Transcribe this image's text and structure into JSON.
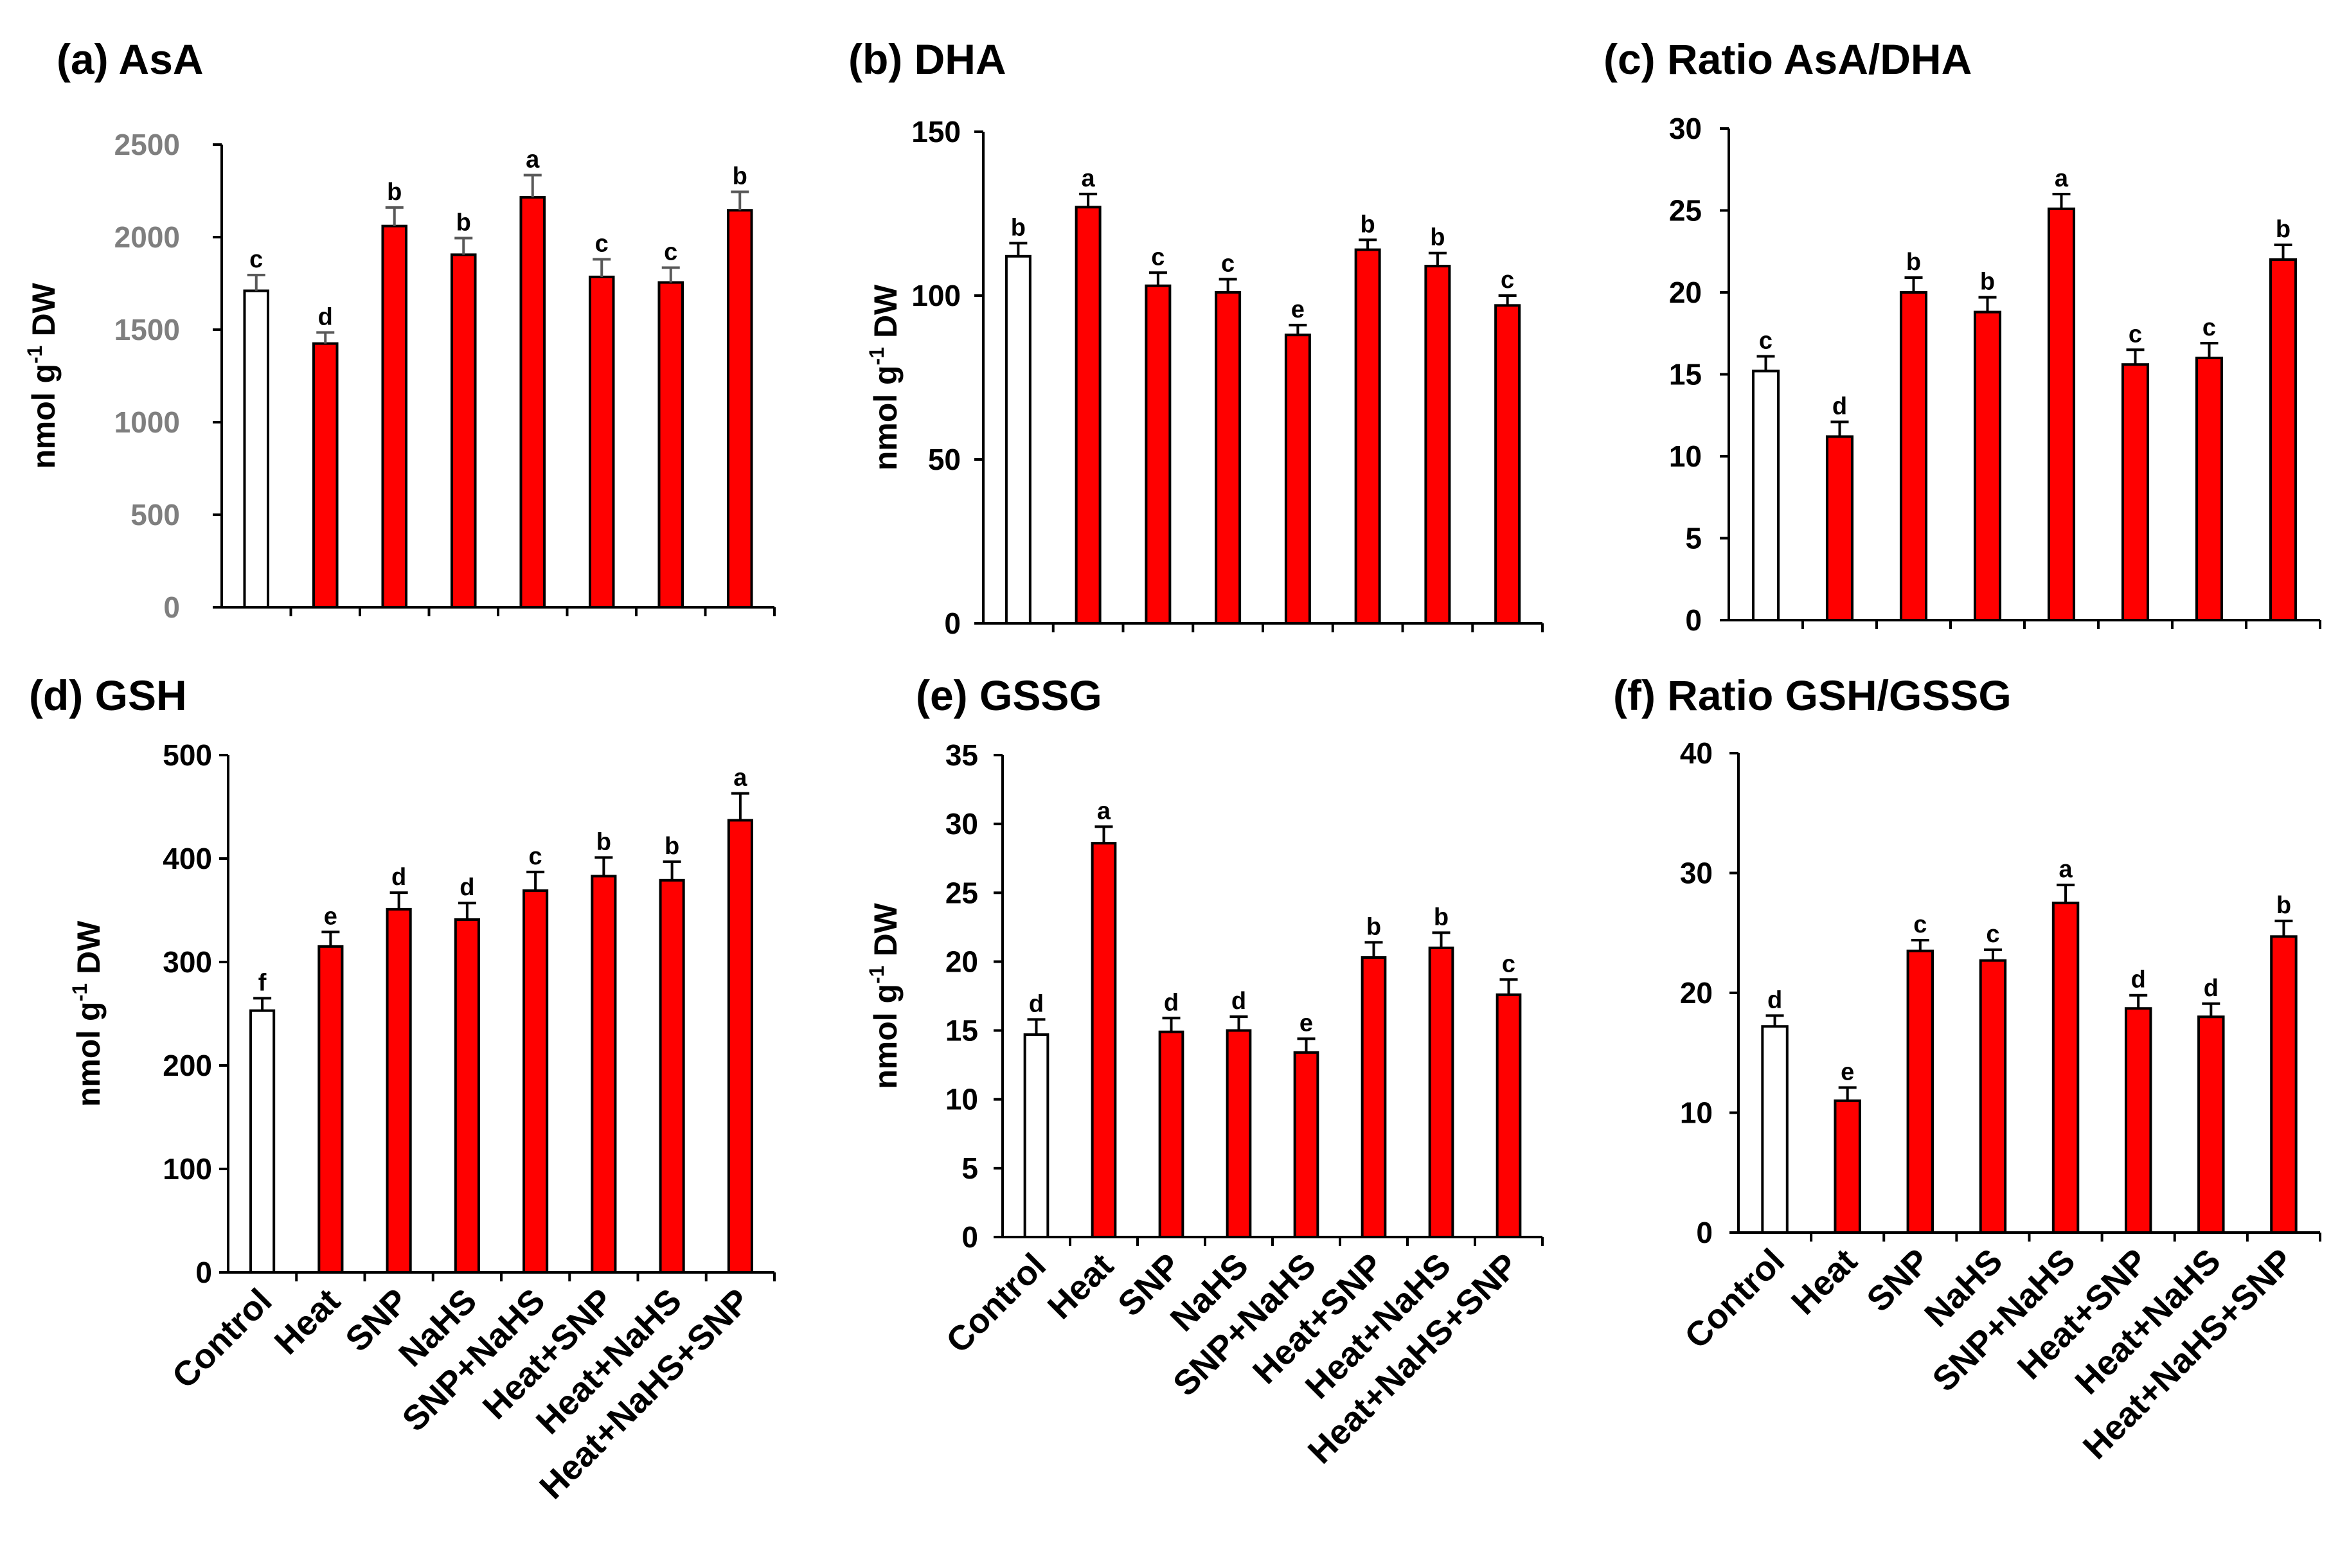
{
  "colors": {
    "control_fill": "#ffffff",
    "treatment_fill": "#ff0000",
    "bar_stroke": "#000000",
    "axis": "#000000",
    "grey_tick_text": "#7f7f7f",
    "grey_error_bar": "#595959"
  },
  "chart_data": [
    {
      "id": "a",
      "type": "bar",
      "title": "(a) AsA",
      "ylabel_main": "nmol g",
      "ylabel_sup": "-1",
      "ylabel_tail": " DW",
      "ylim": [
        0,
        2500
      ],
      "yticks": [
        0,
        500,
        1000,
        1500,
        2000,
        2500
      ],
      "tick_color": "grey",
      "show_xlabels": false,
      "categories": [
        "Control",
        "Heat",
        "SNP",
        "NaHS",
        "SNP+NaHS",
        "Heat+SNP",
        "Heat+NaHS",
        "Heat+NaHS+SNP"
      ],
      "values": [
        1710,
        1425,
        2060,
        1905,
        2215,
        1785,
        1755,
        2145
      ],
      "errors": [
        85,
        60,
        100,
        90,
        120,
        95,
        80,
        100
      ],
      "letters": [
        "c",
        "d",
        "b",
        "b",
        "a",
        "c",
        "c",
        "b"
      ]
    },
    {
      "id": "b",
      "type": "bar",
      "title": "(b) DHA",
      "ylabel_main": "nmol g",
      "ylabel_sup": "-1",
      "ylabel_tail": " DW",
      "ylim": [
        0,
        150
      ],
      "yticks": [
        0,
        50,
        100,
        150
      ],
      "tick_color": "black",
      "show_xlabels": false,
      "categories": [
        "Control",
        "Heat",
        "SNP",
        "NaHS",
        "SNP+NaHS",
        "Heat+SNP",
        "Heat+NaHS",
        "Heat+NaHS+SNP"
      ],
      "values": [
        112,
        127,
        103,
        101,
        88,
        114,
        109,
        97
      ],
      "errors": [
        4,
        4,
        4,
        4,
        3,
        3,
        4,
        3
      ],
      "letters": [
        "b",
        "a",
        "c",
        "c",
        "e",
        "b",
        "b",
        "c"
      ]
    },
    {
      "id": "c",
      "type": "bar",
      "title": "(c) Ratio AsA/DHA",
      "ylabel_main": "",
      "ylabel_sup": "",
      "ylabel_tail": "",
      "ylim": [
        0,
        30
      ],
      "yticks": [
        0,
        5,
        10,
        15,
        20,
        25,
        30
      ],
      "tick_color": "black",
      "show_xlabels": false,
      "categories": [
        "Control",
        "Heat",
        "SNP",
        "NaHS",
        "SNP+NaHS",
        "Heat+SNP",
        "Heat+NaHS",
        "Heat+NaHS+SNP"
      ],
      "values": [
        15.2,
        11.2,
        20.0,
        18.8,
        25.1,
        15.6,
        16.0,
        22.0
      ],
      "errors": [
        0.9,
        0.9,
        0.9,
        0.9,
        0.9,
        0.9,
        0.9,
        0.9
      ],
      "letters": [
        "c",
        "d",
        "b",
        "b",
        "a",
        "c",
        "c",
        "b"
      ]
    },
    {
      "id": "d",
      "type": "bar",
      "title": "(d) GSH",
      "ylabel_main": "nmol g",
      "ylabel_sup": "-1",
      "ylabel_tail": " DW",
      "ylim": [
        0,
        500
      ],
      "yticks": [
        0,
        100,
        200,
        300,
        400,
        500
      ],
      "tick_color": "black",
      "show_xlabels": true,
      "categories": [
        "Control",
        "Heat",
        "SNP",
        "NaHS",
        "SNP+NaHS",
        "Heat+SNP",
        "Heat+NaHS",
        "Heat+NaHS+SNP"
      ],
      "values": [
        253,
        315,
        351,
        341,
        369,
        383,
        379,
        437
      ],
      "errors": [
        12,
        14,
        16,
        16,
        18,
        18,
        18,
        26
      ],
      "letters": [
        "f",
        "e",
        "d",
        "d",
        "c",
        "b",
        "b",
        "a"
      ]
    },
    {
      "id": "e",
      "type": "bar",
      "title": "(e) GSSG",
      "ylabel_main": "nmol g",
      "ylabel_sup": "-1",
      "ylabel_tail": " DW",
      "ylim": [
        0,
        35
      ],
      "yticks": [
        0,
        5,
        10,
        15,
        20,
        25,
        30,
        35
      ],
      "tick_color": "black",
      "show_xlabels": true,
      "categories": [
        "Control",
        "Heat",
        "SNP",
        "NaHS",
        "SNP+NaHS",
        "Heat+SNP",
        "Heat+NaHS",
        "Heat+NaHS+SNP"
      ],
      "values": [
        14.7,
        28.6,
        14.9,
        15.0,
        13.4,
        20.3,
        21.0,
        17.6
      ],
      "errors": [
        1.1,
        1.2,
        1.0,
        1.0,
        1.0,
        1.1,
        1.1,
        1.1
      ],
      "letters": [
        "d",
        "a",
        "d",
        "d",
        "e",
        "b",
        "b",
        "c"
      ]
    },
    {
      "id": "f",
      "type": "bar",
      "title": "(f) Ratio GSH/GSSG",
      "ylabel_main": "",
      "ylabel_sup": "",
      "ylabel_tail": "",
      "ylim": [
        0,
        40
      ],
      "yticks": [
        0,
        10,
        20,
        30,
        40
      ],
      "tick_color": "black",
      "show_xlabels": true,
      "categories": [
        "Control",
        "Heat",
        "SNP",
        "NaHS",
        "SNP+NaHS",
        "Heat+SNP",
        "Heat+NaHS",
        "Heat+NaHS+SNP"
      ],
      "values": [
        17.2,
        11.0,
        23.5,
        22.7,
        27.5,
        18.7,
        18.0,
        24.7
      ],
      "errors": [
        0.9,
        1.1,
        0.9,
        0.9,
        1.5,
        1.1,
        1.1,
        1.3
      ],
      "letters": [
        "d",
        "e",
        "c",
        "c",
        "a",
        "d",
        "d",
        "b"
      ]
    }
  ]
}
